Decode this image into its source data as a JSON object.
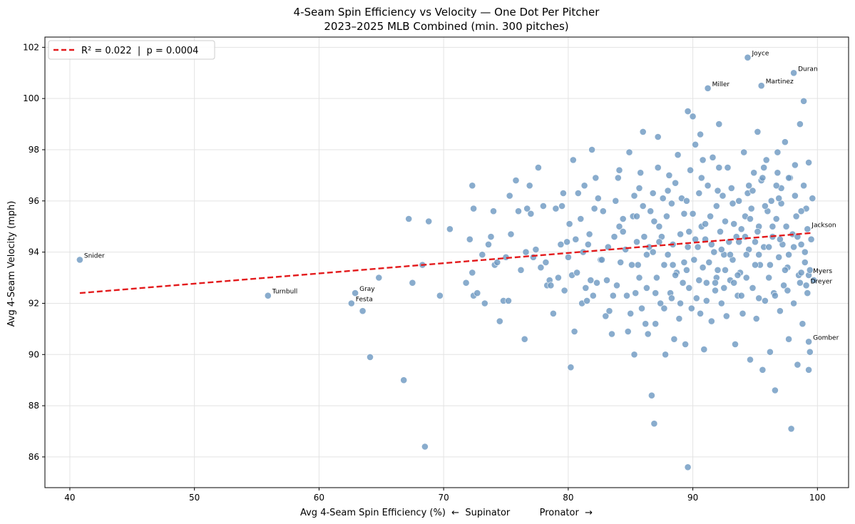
{
  "chart_data": {
    "type": "scatter",
    "title": "4-Seam Spin Efficiency vs Velocity — One Dot Per Pitcher",
    "subtitle": "2023–2025 MLB Combined (min. 300 pitches)",
    "xlabel": "Avg 4-Seam Spin Efficiency (%)  ←  Supinator          Pronator  →",
    "ylabel": "Avg 4-Seam Velocity (mph)",
    "xlim": [
      38,
      102.5
    ],
    "ylim": [
      84.8,
      102.4
    ],
    "xticks": [
      40,
      50,
      60,
      70,
      80,
      90,
      100
    ],
    "yticks": [
      86,
      88,
      90,
      92,
      94,
      96,
      98,
      100,
      102
    ],
    "grid": true,
    "legend_position": "top-left",
    "colors": {
      "points": "#6f9ac2",
      "points_edge": "#ffffff",
      "trend": "#e31a1c"
    },
    "trend": {
      "label": "R² = 0.022  |  p = 0.0004",
      "x": [
        40.8,
        99.6
      ],
      "y": [
        92.4,
        94.75
      ]
    },
    "annotations": [
      {
        "label": "Joyce",
        "x": 94.4,
        "y": 101.6
      },
      {
        "label": "Duran",
        "x": 98.1,
        "y": 101.0
      },
      {
        "label": "Miller",
        "x": 91.2,
        "y": 100.4
      },
      {
        "label": "Martinez",
        "x": 95.5,
        "y": 100.5
      },
      {
        "label": "Snider",
        "x": 40.8,
        "y": 93.7
      },
      {
        "label": "Turnbull",
        "x": 55.9,
        "y": 92.3
      },
      {
        "label": "Gray",
        "x": 62.9,
        "y": 92.4
      },
      {
        "label": "Festa",
        "x": 62.6,
        "y": 92.0
      },
      {
        "label": "Jackson",
        "x": 99.2,
        "y": 94.9
      },
      {
        "label": "Myers",
        "x": 99.3,
        "y": 93.1
      },
      {
        "label": "Dreyer",
        "x": 99.1,
        "y": 92.7
      },
      {
        "label": "Gomber",
        "x": 99.3,
        "y": 90.5
      }
    ],
    "points": [
      [
        40.8,
        93.7
      ],
      [
        55.9,
        92.3
      ],
      [
        62.9,
        92.4
      ],
      [
        62.6,
        92.0
      ],
      [
        63.5,
        91.7
      ],
      [
        64.1,
        89.9
      ],
      [
        64.8,
        93.0
      ],
      [
        66.8,
        89.0
      ],
      [
        67.2,
        95.3
      ],
      [
        67.5,
        92.8
      ],
      [
        68.3,
        93.5
      ],
      [
        68.5,
        86.4
      ],
      [
        68.8,
        95.2
      ],
      [
        69.7,
        92.3
      ],
      [
        70.5,
        94.9
      ],
      [
        71.8,
        92.8
      ],
      [
        72.1,
        94.5
      ],
      [
        72.3,
        96.6
      ],
      [
        72.4,
        95.7
      ],
      [
        72.3,
        93.2
      ],
      [
        72.4,
        92.3
      ],
      [
        72.7,
        92.4
      ],
      [
        73.1,
        93.9
      ],
      [
        73.3,
        92.0
      ],
      [
        73.6,
        94.3
      ],
      [
        74.0,
        95.6
      ],
      [
        74.1,
        93.5
      ],
      [
        74.3,
        93.6
      ],
      [
        74.5,
        91.3
      ],
      [
        74.8,
        92.1
      ],
      [
        75.2,
        92.1
      ],
      [
        75.3,
        96.2
      ],
      [
        75.4,
        94.7
      ],
      [
        75.8,
        96.8
      ],
      [
        76.0,
        95.6
      ],
      [
        76.2,
        93.3
      ],
      [
        76.5,
        90.6
      ],
      [
        76.7,
        95.7
      ],
      [
        76.9,
        96.6
      ],
      [
        77.0,
        95.5
      ],
      [
        77.2,
        93.8
      ],
      [
        77.4,
        94.1
      ],
      [
        77.6,
        97.3
      ],
      [
        77.8,
        93.4
      ],
      [
        78.0,
        95.8
      ],
      [
        78.3,
        92.7
      ],
      [
        78.5,
        92.9
      ],
      [
        78.6,
        92.7
      ],
      [
        78.8,
        91.6
      ],
      [
        79.0,
        95.7
      ],
      [
        79.2,
        93.0
      ],
      [
        79.4,
        94.3
      ],
      [
        79.6,
        96.3
      ],
      [
        79.7,
        92.5
      ],
      [
        79.9,
        94.4
      ],
      [
        80.1,
        95.1
      ],
      [
        80.2,
        89.5
      ],
      [
        80.3,
        93.1
      ],
      [
        80.4,
        97.6
      ],
      [
        80.5,
        90.9
      ],
      [
        80.6,
        94.5
      ],
      [
        80.7,
        93.2
      ],
      [
        80.8,
        96.3
      ],
      [
        81.1,
        92.0
      ],
      [
        81.2,
        94.0
      ],
      [
        81.3,
        96.6
      ],
      [
        81.4,
        92.6
      ],
      [
        81.6,
        94.3
      ],
      [
        81.7,
        94.7
      ],
      [
        81.8,
        92.9
      ],
      [
        81.9,
        98.0
      ],
      [
        82.0,
        92.3
      ],
      [
        82.1,
        95.7
      ],
      [
        82.3,
        92.8
      ],
      [
        82.4,
        96.1
      ],
      [
        82.6,
        93.7
      ],
      [
        82.8,
        95.6
      ],
      [
        83.0,
        91.5
      ],
      [
        83.1,
        92.9
      ],
      [
        83.3,
        91.7
      ],
      [
        83.5,
        90.8
      ],
      [
        83.6,
        92.3
      ],
      [
        83.7,
        94.6
      ],
      [
        83.8,
        96.0
      ],
      [
        84.0,
        96.9
      ],
      [
        84.1,
        95.0
      ],
      [
        84.2,
        93.6
      ],
      [
        84.4,
        95.3
      ],
      [
        84.6,
        94.1
      ],
      [
        84.7,
        92.3
      ],
      [
        84.9,
        97.9
      ],
      [
        85.0,
        91.6
      ],
      [
        85.1,
        93.5
      ],
      [
        85.2,
        95.4
      ],
      [
        85.3,
        90.0
      ],
      [
        85.4,
        92.4
      ],
      [
        85.5,
        94.4
      ],
      [
        85.6,
        93.5
      ],
      [
        85.7,
        96.5
      ],
      [
        85.8,
        97.1
      ],
      [
        85.9,
        91.8
      ],
      [
        86.0,
        95.8
      ],
      [
        86.1,
        94.6
      ],
      [
        86.3,
        92.6
      ],
      [
        86.4,
        90.8
      ],
      [
        86.5,
        94.2
      ],
      [
        86.6,
        95.6
      ],
      [
        86.7,
        88.4
      ],
      [
        86.8,
        94.0
      ],
      [
        86.9,
        87.3
      ],
      [
        87.0,
        91.2
      ],
      [
        87.1,
        93.0
      ],
      [
        87.2,
        97.3
      ],
      [
        87.3,
        95.0
      ],
      [
        87.4,
        92.0
      ],
      [
        87.5,
        94.6
      ],
      [
        87.6,
        96.1
      ],
      [
        87.7,
        93.5
      ],
      [
        87.8,
        90.0
      ],
      [
        87.9,
        95.4
      ],
      [
        88.0,
        93.9
      ],
      [
        88.1,
        97.0
      ],
      [
        88.2,
        92.4
      ],
      [
        88.3,
        95.9
      ],
      [
        88.4,
        94.3
      ],
      [
        88.5,
        90.6
      ],
      [
        88.6,
        96.7
      ],
      [
        88.7,
        93.2
      ],
      [
        88.8,
        97.8
      ],
      [
        88.9,
        91.4
      ],
      [
        89.0,
        94.7
      ],
      [
        89.1,
        96.1
      ],
      [
        89.2,
        92.8
      ],
      [
        89.3,
        95.5
      ],
      [
        89.4,
        90.4
      ],
      [
        89.5,
        93.3
      ],
      [
        89.6,
        85.6
      ],
      [
        89.7,
        94.8
      ],
      [
        89.8,
        97.2
      ],
      [
        89.9,
        91.8
      ],
      [
        90.0,
        95.5
      ],
      [
        90.1,
        93.7
      ],
      [
        90.2,
        98.2
      ],
      [
        90.3,
        92.2
      ],
      [
        90.4,
        94.2
      ],
      [
        90.5,
        96.3
      ],
      [
        90.6,
        91.6
      ],
      [
        90.7,
        95.0
      ],
      [
        90.8,
        97.6
      ],
      [
        90.9,
        90.2
      ],
      [
        91.0,
        94.5
      ],
      [
        91.1,
        92.8
      ],
      [
        91.2,
        96.6
      ],
      [
        91.3,
        93.6
      ],
      [
        91.4,
        95.4
      ],
      [
        91.5,
        91.3
      ],
      [
        91.6,
        97.7
      ],
      [
        91.7,
        94.0
      ],
      [
        91.8,
        92.5
      ],
      [
        91.9,
        95.8
      ],
      [
        92.0,
        93.3
      ],
      [
        92.1,
        99.0
      ],
      [
        92.2,
        94.8
      ],
      [
        92.3,
        92.0
      ],
      [
        92.4,
        96.2
      ],
      [
        92.5,
        93.9
      ],
      [
        92.6,
        95.2
      ],
      [
        92.7,
        91.5
      ],
      [
        92.8,
        97.3
      ],
      [
        92.9,
        94.4
      ],
      [
        93.0,
        92.9
      ],
      [
        93.1,
        96.5
      ],
      [
        93.2,
        93.7
      ],
      [
        93.3,
        95.1
      ],
      [
        93.4,
        90.4
      ],
      [
        93.5,
        94.6
      ],
      [
        93.6,
        92.3
      ],
      [
        93.7,
        96.0
      ],
      [
        93.8,
        93.2
      ],
      [
        93.9,
        94.9
      ],
      [
        94.0,
        91.6
      ],
      [
        94.1,
        97.9
      ],
      [
        94.2,
        95.4
      ],
      [
        94.3,
        93.0
      ],
      [
        94.4,
        96.3
      ],
      [
        94.5,
        94.1
      ],
      [
        94.6,
        89.8
      ],
      [
        94.7,
        95.7
      ],
      [
        94.8,
        92.6
      ],
      [
        94.9,
        97.1
      ],
      [
        95.0,
        94.4
      ],
      [
        95.1,
        91.4
      ],
      [
        95.2,
        98.7
      ],
      [
        95.3,
        95.0
      ],
      [
        95.4,
        93.5
      ],
      [
        95.5,
        96.8
      ],
      [
        95.6,
        89.4
      ],
      [
        95.7,
        94.2
      ],
      [
        95.8,
        92.1
      ],
      [
        95.9,
        97.6
      ],
      [
        96.0,
        95.6
      ],
      [
        96.1,
        93.0
      ],
      [
        96.2,
        90.1
      ],
      [
        96.3,
        96.0
      ],
      [
        96.4,
        94.6
      ],
      [
        96.5,
        92.4
      ],
      [
        96.6,
        88.6
      ],
      [
        96.7,
        95.3
      ],
      [
        96.8,
        97.9
      ],
      [
        96.9,
        93.8
      ],
      [
        97.0,
        91.7
      ],
      [
        97.1,
        96.5
      ],
      [
        97.2,
        94.3
      ],
      [
        97.3,
        92.7
      ],
      [
        97.4,
        98.3
      ],
      [
        97.5,
        95.0
      ],
      [
        97.6,
        93.4
      ],
      [
        97.7,
        90.6
      ],
      [
        97.8,
        96.9
      ],
      [
        97.9,
        87.1
      ],
      [
        98.0,
        94.7
      ],
      [
        98.1,
        92.0
      ],
      [
        98.2,
        97.4
      ],
      [
        98.3,
        95.4
      ],
      [
        98.4,
        89.6
      ],
      [
        98.5,
        93.1
      ],
      [
        98.6,
        99.0
      ],
      [
        98.7,
        94.3
      ],
      [
        98.8,
        91.2
      ],
      [
        98.9,
        96.6
      ],
      [
        99.0,
        93.6
      ],
      [
        99.1,
        95.7
      ],
      [
        99.2,
        92.4
      ],
      [
        99.3,
        97.5
      ],
      [
        99.4,
        90.1
      ],
      [
        99.5,
        94.5
      ],
      [
        99.6,
        96.1
      ],
      [
        99.7,
        92.9
      ],
      [
        98.9,
        99.9
      ],
      [
        99.3,
        89.4
      ],
      [
        94.4,
        101.6
      ],
      [
        98.1,
        101.0
      ],
      [
        91.2,
        100.4
      ],
      [
        95.5,
        100.5
      ],
      [
        99.2,
        94.9
      ],
      [
        99.3,
        93.1
      ],
      [
        99.1,
        92.7
      ],
      [
        99.3,
        90.5
      ],
      [
        89.6,
        99.5
      ],
      [
        90.0,
        99.3
      ],
      [
        87.2,
        98.5
      ],
      [
        86.0,
        98.7
      ],
      [
        90.6,
        98.6
      ],
      [
        92.1,
        97.3
      ],
      [
        94.8,
        96.4
      ],
      [
        95.6,
        96.9
      ],
      [
        96.7,
        96.6
      ],
      [
        97.1,
        95.9
      ],
      [
        98.2,
        96.2
      ],
      [
        98.7,
        95.6
      ],
      [
        91.0,
        95.1
      ],
      [
        92.3,
        94.1
      ],
      [
        93.6,
        93.1
      ],
      [
        94.3,
        93.9
      ],
      [
        95.2,
        94.8
      ],
      [
        96.4,
        95.0
      ],
      [
        97.0,
        94.5
      ],
      [
        97.7,
        93.9
      ],
      [
        98.1,
        94.2
      ],
      [
        98.7,
        93.2
      ],
      [
        88.6,
        93.1
      ],
      [
        89.3,
        93.6
      ],
      [
        90.2,
        94.5
      ],
      [
        91.5,
        94.3
      ],
      [
        92.6,
        93.3
      ],
      [
        93.7,
        94.4
      ],
      [
        94.6,
        95.3
      ],
      [
        95.8,
        95.8
      ],
      [
        96.9,
        96.1
      ],
      [
        97.7,
        96.9
      ],
      [
        86.3,
        93.9
      ],
      [
        87.3,
        94.4
      ],
      [
        88.4,
        93.5
      ],
      [
        89.6,
        94.2
      ],
      [
        90.8,
        93.4
      ],
      [
        91.9,
        93.0
      ],
      [
        93.0,
        93.9
      ],
      [
        94.2,
        94.6
      ],
      [
        95.3,
        93.9
      ],
      [
        96.2,
        93.5
      ],
      [
        85.5,
        95.4
      ],
      [
        86.8,
        96.3
      ],
      [
        88.0,
        96.4
      ],
      [
        89.5,
        96.0
      ],
      [
        90.7,
        96.9
      ],
      [
        92.0,
        96.4
      ],
      [
        93.2,
        95.9
      ],
      [
        94.5,
        96.6
      ],
      [
        95.7,
        97.3
      ],
      [
        96.8,
        97.1
      ],
      [
        83.2,
        94.2
      ],
      [
        84.4,
        94.8
      ],
      [
        85.7,
        93.0
      ],
      [
        87.0,
        92.4
      ],
      [
        88.3,
        92.2
      ],
      [
        89.7,
        92.6
      ],
      [
        91.1,
        92.1
      ],
      [
        92.5,
        92.6
      ],
      [
        93.9,
        92.3
      ],
      [
        95.3,
        92.2
      ],
      [
        96.6,
        92.3
      ],
      [
        97.6,
        92.5
      ],
      [
        98.6,
        92.8
      ],
      [
        99.4,
        93.3
      ],
      [
        99.0,
        94.0
      ],
      [
        98.4,
        94.6
      ],
      [
        97.4,
        93.3
      ],
      [
        96.1,
        94.2
      ],
      [
        95.0,
        93.5
      ],
      [
        93.3,
        92.8
      ],
      [
        91.8,
        92.8
      ],
      [
        90.5,
        92.9
      ],
      [
        89.0,
        92.0
      ],
      [
        87.7,
        91.8
      ],
      [
        86.2,
        91.2
      ],
      [
        84.8,
        90.9
      ],
      [
        83.9,
        92.7
      ],
      [
        82.7,
        93.7
      ],
      [
        81.5,
        92.1
      ],
      [
        80.0,
        93.8
      ],
      [
        78.2,
        93.6
      ],
      [
        76.6,
        94.0
      ],
      [
        75.0,
        93.8
      ],
      [
        73.8,
        94.6
      ],
      [
        79.5,
        95.8
      ],
      [
        81.0,
        95.3
      ],
      [
        82.2,
        96.9
      ],
      [
        84.1,
        97.2
      ],
      [
        85.3,
        96.2
      ],
      [
        86.9,
        95.2
      ]
    ]
  }
}
